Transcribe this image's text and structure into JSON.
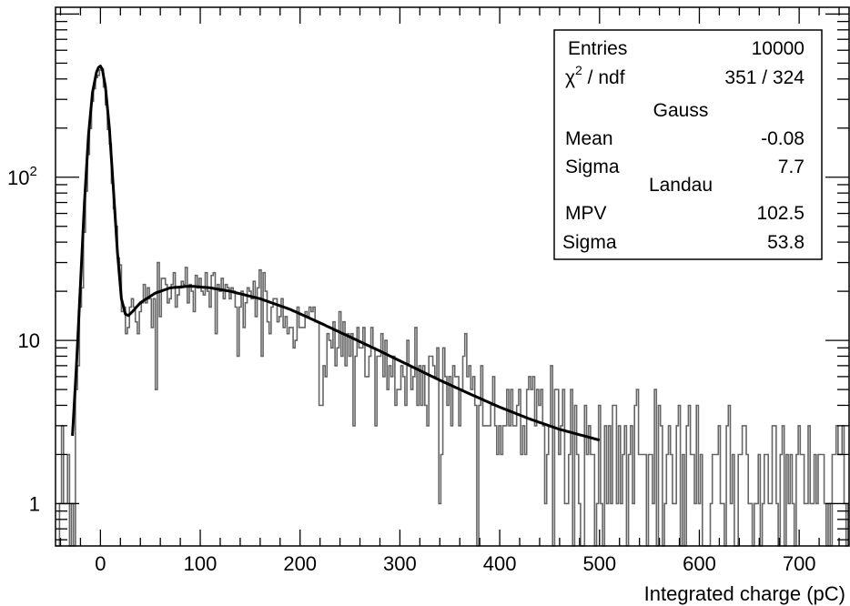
{
  "chart_data": {
    "type": "histogram",
    "title": "",
    "xlabel": "Integrated charge (pC)",
    "ylabel": "",
    "xlim": [
      -45,
      750
    ],
    "ylim": [
      0.55,
      1100
    ],
    "yscale": "log",
    "grid": false,
    "x_ticks": [
      0,
      100,
      200,
      300,
      400,
      500,
      600,
      700
    ],
    "y_tick_labels": [
      {
        "value": 1,
        "label": "1",
        "exp": ""
      },
      {
        "value": 10,
        "label": "10",
        "exp": ""
      },
      {
        "value": 100,
        "label": "10",
        "exp": "2"
      }
    ],
    "histogram": {
      "name": "data",
      "bin_width": 2,
      "color": "#666666",
      "profile_points": [
        [
          -45,
          0.4
        ],
        [
          -38,
          0.7
        ],
        [
          -31,
          1.0
        ],
        [
          -28,
          1.0
        ],
        [
          -26,
          1.3
        ],
        [
          -24,
          2.5
        ],
        [
          -20,
          10
        ],
        [
          -16,
          45
        ],
        [
          -12,
          150
        ],
        [
          -8,
          300
        ],
        [
          -4,
          420
        ],
        [
          -2,
          470
        ],
        [
          0,
          480
        ],
        [
          2,
          440
        ],
        [
          5,
          340
        ],
        [
          9,
          180
        ],
        [
          13,
          80
        ],
        [
          17,
          35
        ],
        [
          21,
          20
        ],
        [
          25,
          15
        ],
        [
          28,
          13
        ],
        [
          32,
          14
        ],
        [
          40,
          17
        ],
        [
          55,
          20
        ],
        [
          75,
          21.5
        ],
        [
          95,
          21.5
        ],
        [
          120,
          20
        ],
        [
          150,
          18
        ],
        [
          180,
          15.5
        ],
        [
          210,
          12.5
        ],
        [
          240,
          10
        ],
        [
          270,
          8
        ],
        [
          300,
          6.5
        ],
        [
          330,
          5.3
        ],
        [
          360,
          4.4
        ],
        [
          390,
          3.7
        ],
        [
          420,
          3.2
        ],
        [
          450,
          2.8
        ],
        [
          480,
          2.5
        ],
        [
          510,
          2.2
        ],
        [
          540,
          2.0
        ],
        [
          570,
          1.8
        ],
        [
          600,
          1.6
        ],
        [
          630,
          1.45
        ],
        [
          660,
          1.35
        ],
        [
          690,
          1.25
        ],
        [
          720,
          1.15
        ],
        [
          750,
          1.05
        ]
      ]
    },
    "fit": {
      "name": "fit",
      "color": "#000000",
      "x_range": [
        -28,
        500
      ],
      "points": [
        [
          -28,
          2.6
        ],
        [
          -24,
          7
        ],
        [
          -20,
          22
        ],
        [
          -16,
          70
        ],
        [
          -12,
          180
        ],
        [
          -8,
          330
        ],
        [
          -4,
          440
        ],
        [
          -2,
          470
        ],
        [
          0,
          480
        ],
        [
          2,
          455
        ],
        [
          5,
          360
        ],
        [
          9,
          200
        ],
        [
          13,
          85
        ],
        [
          17,
          35
        ],
        [
          21,
          18
        ],
        [
          25,
          14.5
        ],
        [
          28,
          14.2
        ],
        [
          32,
          15
        ],
        [
          40,
          17
        ],
        [
          55,
          19.5
        ],
        [
          70,
          21
        ],
        [
          90,
          21.5
        ],
        [
          110,
          21
        ],
        [
          130,
          20
        ],
        [
          160,
          18
        ],
        [
          190,
          15.5
        ],
        [
          220,
          12.8
        ],
        [
          250,
          10.5
        ],
        [
          280,
          8.6
        ],
        [
          310,
          7
        ],
        [
          340,
          5.7
        ],
        [
          370,
          4.7
        ],
        [
          400,
          3.9
        ],
        [
          430,
          3.3
        ],
        [
          460,
          2.85
        ],
        [
          500,
          2.45
        ]
      ]
    },
    "stats_box": {
      "entries_label": "Entries",
      "entries_value": "10000",
      "chi2_label": "χ",
      "chi2_sup": "2",
      "chi2_rest": " / ndf",
      "chi2_value": "351 / 324",
      "gauss_header": "Gauss",
      "gauss_mean_label": "Mean",
      "gauss_mean_value": "-0.08",
      "gauss_sigma_label": "Sigma",
      "gauss_sigma_value": "7.7",
      "landau_header": "Landau",
      "landau_mpv_label": "MPV",
      "landau_mpv_value": "102.5",
      "landau_sigma_label": "Sigma",
      "landau_sigma_value": "53.8"
    }
  }
}
